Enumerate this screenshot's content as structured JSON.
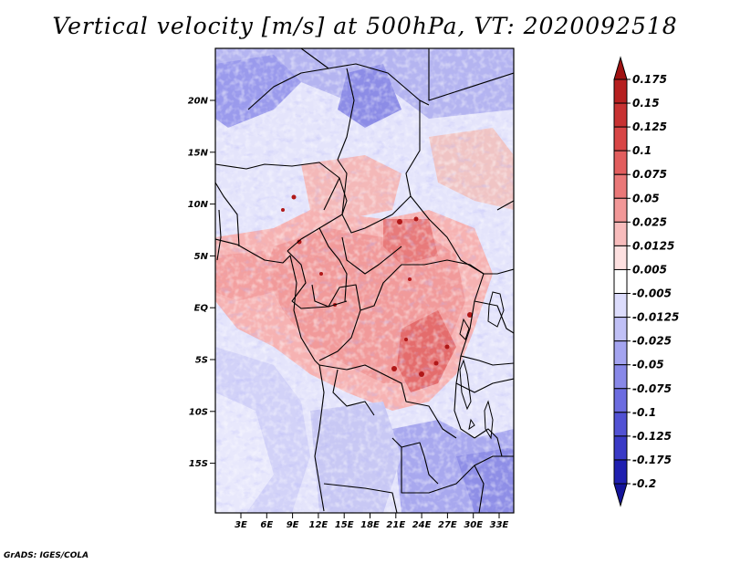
{
  "title": "Vertical velocity [m/s] at 500hPa, VT: 2020092518",
  "footer": "GrADS: IGES/COLA",
  "map": {
    "lat_labels": [
      "20N",
      "15N",
      "10N",
      "5N",
      "EQ",
      "5S",
      "10S",
      "15S"
    ],
    "lon_labels": [
      "3E",
      "6E",
      "9E",
      "12E",
      "15E",
      "18E",
      "21E",
      "24E",
      "27E",
      "30E",
      "33E"
    ]
  },
  "colorbar": {
    "levels": [
      "0.175",
      "0.15",
      "0.125",
      "0.1",
      "0.075",
      "0.05",
      "0.025",
      "0.0125",
      "0.005",
      "-0.005",
      "-0.0125",
      "-0.025",
      "-0.05",
      "-0.075",
      "-0.1",
      "-0.125",
      "-0.175",
      "-0.2"
    ],
    "colors": [
      "#a01212",
      "#b62020",
      "#c83232",
      "#d84646",
      "#e25e5e",
      "#ea7878",
      "#f29898",
      "#f8bcbc",
      "#fde0e0",
      "#ffffff",
      "#dcdcfc",
      "#c0c0f6",
      "#a4a4f0",
      "#8888e8",
      "#6c6ce0",
      "#5252d4",
      "#3a3ac6",
      "#2020b0",
      "#14149a"
    ]
  }
}
